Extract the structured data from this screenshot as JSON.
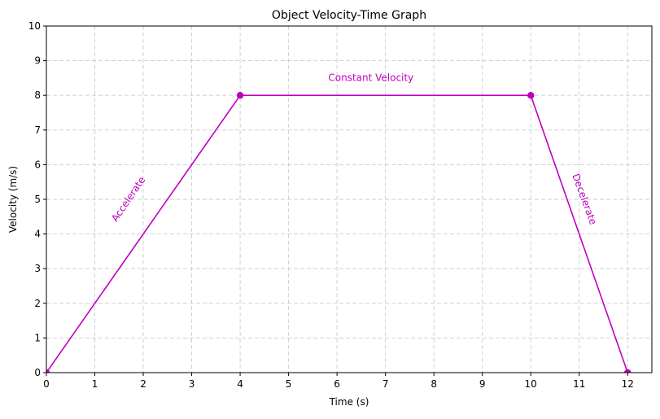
{
  "chart_data": {
    "type": "line",
    "title": "Object Velocity-Time Graph",
    "xlabel": "Time (s)",
    "ylabel": "Velocity (m/s)",
    "xlim": [
      0,
      12.5
    ],
    "ylim": [
      0,
      10
    ],
    "x_ticks": [
      0,
      1,
      2,
      3,
      4,
      5,
      6,
      7,
      8,
      9,
      10,
      11,
      12
    ],
    "y_ticks": [
      0,
      1,
      2,
      3,
      4,
      5,
      6,
      7,
      8,
      9,
      10
    ],
    "grid": true,
    "colors": {
      "series": "#bf00bf",
      "grid": "#cccccc",
      "axis": "#000000"
    },
    "series": [
      {
        "x": [
          0,
          4,
          10,
          12
        ],
        "y": [
          0,
          8,
          8,
          0
        ],
        "marker": "circle"
      }
    ],
    "annotations": [
      {
        "text": "Accelerate",
        "x": 1.7,
        "y": 5.0,
        "rotation": -56
      },
      {
        "text": "Constant Velocity",
        "x": 6.7,
        "y": 8.5,
        "rotation": 0
      },
      {
        "text": "Decelerate",
        "x": 11.1,
        "y": 5.0,
        "rotation": 70
      }
    ]
  }
}
